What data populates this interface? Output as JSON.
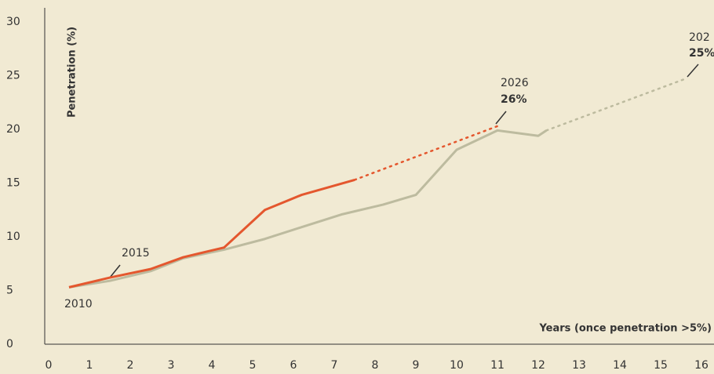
{
  "chart_data": {
    "type": "line",
    "xlabel": "Years (once penetration >5%)",
    "ylabel": "Penetration (%)",
    "xlim": [
      0,
      16
    ],
    "ylim": [
      0,
      30
    ],
    "xticks": [
      0,
      1,
      2,
      3,
      4,
      5,
      6,
      7,
      8,
      9,
      10,
      11,
      12,
      13,
      14,
      15,
      16
    ],
    "yticks": [
      0,
      5,
      10,
      15,
      20,
      25,
      30
    ],
    "series": [
      {
        "color": "#bdbb9f",
        "dash": false,
        "x": [
          0.5,
          1.5,
          2.5,
          3.3,
          4.3,
          5.3,
          6.2,
          7.2,
          8.2,
          9,
          10,
          11,
          12,
          12.2
        ],
        "values": [
          5.3,
          5.9,
          6.8,
          8.0,
          8.8,
          9.8,
          10.9,
          12.1,
          13.0,
          13.9,
          18.1,
          19.9,
          19.4,
          19.9
        ]
      },
      {
        "color": "#bdbb9f",
        "dash": true,
        "x": [
          12.2,
          15.6
        ],
        "values": [
          19.9,
          24.7
        ]
      },
      {
        "color": "#e4572e",
        "dash": false,
        "x": [
          0.5,
          1.5,
          2.5,
          3.3,
          4.3,
          5.3,
          6.2,
          7.5
        ],
        "values": [
          5.3,
          6.2,
          7.0,
          8.1,
          9.0,
          12.5,
          13.9,
          15.3
        ]
      },
      {
        "color": "#e4572e",
        "dash": true,
        "x": [
          7.5,
          11
        ],
        "values": [
          15.3,
          20.3
        ]
      }
    ],
    "annotations": [
      {
        "year": "2010"
      },
      {
        "year": "2015"
      },
      {
        "year": "2026",
        "value": "26%"
      },
      {
        "year": "202",
        "value": "25%"
      }
    ]
  }
}
